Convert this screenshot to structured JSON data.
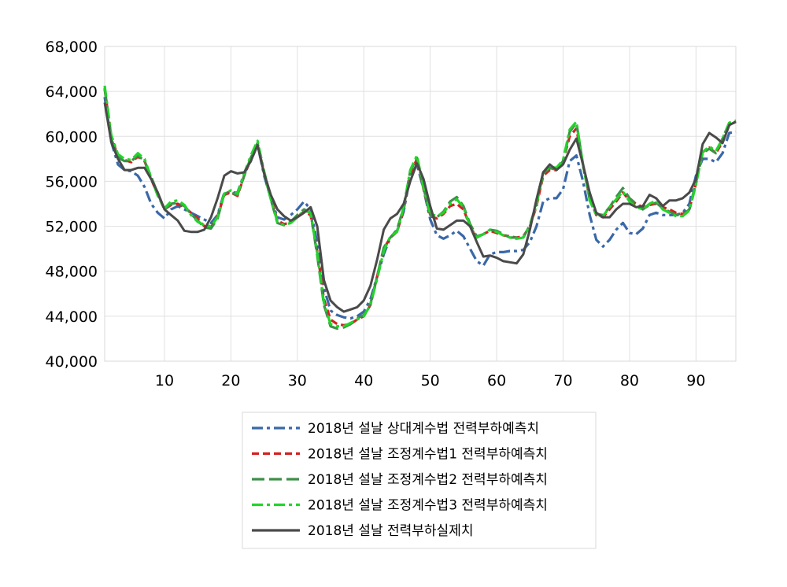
{
  "chart_data": {
    "type": "line",
    "title": "",
    "xlabel": "",
    "ylabel": "",
    "xlim": [
      1,
      96
    ],
    "ylim": [
      40000,
      68000
    ],
    "x_ticks": [
      10,
      20,
      30,
      40,
      50,
      60,
      70,
      80,
      90
    ],
    "x_tick_labels": [
      "10",
      "20",
      "30",
      "40",
      "50",
      "60",
      "70",
      "80",
      "90"
    ],
    "y_ticks": [
      40000,
      44000,
      48000,
      52000,
      56000,
      60000,
      64000,
      68000
    ],
    "y_tick_labels": [
      "40,000",
      "44,000",
      "48,000",
      "52,000",
      "56,000",
      "60,000",
      "64,000",
      "68,000"
    ],
    "grid": true,
    "legend_position": "bottom",
    "x": [
      1,
      2,
      3,
      4,
      5,
      6,
      7,
      8,
      9,
      10,
      11,
      12,
      13,
      14,
      15,
      16,
      17,
      18,
      19,
      20,
      21,
      22,
      23,
      24,
      25,
      26,
      27,
      28,
      29,
      30,
      31,
      32,
      33,
      34,
      35,
      36,
      37,
      38,
      39,
      40,
      41,
      42,
      43,
      44,
      45,
      46,
      47,
      48,
      49,
      50,
      51,
      52,
      53,
      54,
      55,
      56,
      57,
      58,
      59,
      60,
      61,
      62,
      63,
      64,
      65,
      66,
      67,
      68,
      69,
      70,
      71,
      72,
      73,
      74,
      75,
      76,
      77,
      78,
      79,
      80,
      81,
      82,
      83,
      84,
      85,
      86,
      87,
      88,
      89,
      90,
      91,
      92,
      93,
      94,
      95,
      96
    ],
    "series": [
      {
        "name": "2018년 설날 상대계수법 전력부하예측치",
        "color": "#3a68a8",
        "dash": "dashdot",
        "values": [
          63500,
          59500,
          57500,
          57000,
          56900,
          56500,
          55500,
          54000,
          53200,
          52700,
          53500,
          53800,
          53500,
          53200,
          52900,
          52600,
          52300,
          53000,
          55000,
          55000,
          55000,
          56700,
          57800,
          59300,
          56500,
          54500,
          52800,
          52600,
          53000,
          53500,
          54200,
          53500,
          50500,
          46500,
          44500,
          44100,
          43900,
          43800,
          44000,
          44400,
          45500,
          47500,
          49500,
          51000,
          51600,
          53300,
          56500,
          57500,
          55300,
          52600,
          51200,
          50900,
          51200,
          51600,
          51100,
          50000,
          48900,
          48500,
          49500,
          49700,
          49700,
          49800,
          49800,
          49900,
          50600,
          52000,
          54200,
          54500,
          54500,
          55300,
          57800,
          58300,
          56000,
          53000,
          50800,
          50200,
          50800,
          51700,
          52300,
          51400,
          51300,
          51800,
          53000,
          53200,
          53000,
          53000,
          53000,
          53200,
          54000,
          56500,
          58000,
          58000,
          57700,
          58500,
          60300,
          60400
        ]
      },
      {
        "name": "2018년 설날 조정계수법1 전력부하예측치",
        "color": "#d42020",
        "dash": "dash",
        "values": [
          64200,
          60000,
          58200,
          57900,
          57700,
          58200,
          57800,
          56200,
          54800,
          53500,
          53900,
          54000,
          53700,
          53200,
          52700,
          52000,
          51900,
          52900,
          54800,
          55000,
          54700,
          56500,
          58000,
          59300,
          56800,
          54600,
          52500,
          52200,
          52300,
          52800,
          53300,
          53000,
          49800,
          45500,
          43700,
          43300,
          43200,
          43300,
          43700,
          44000,
          45000,
          47500,
          50000,
          51000,
          51500,
          53500,
          56600,
          58000,
          55300,
          52900,
          52700,
          53100,
          53800,
          54000,
          53500,
          52000,
          51000,
          51300,
          51600,
          51400,
          51200,
          51100,
          51000,
          51100,
          52000,
          53800,
          56500,
          57000,
          57000,
          57800,
          60000,
          60700,
          57400,
          54500,
          53000,
          52800,
          53500,
          54200,
          55000,
          54300,
          54000,
          53700,
          53900,
          54000,
          53700,
          53500,
          53200,
          53100,
          53500,
          55800,
          58600,
          59000,
          58500,
          59500,
          61000,
          61300
        ]
      },
      {
        "name": "2018년 설날 조정계수법2 전력부하예측치",
        "color": "#3f8f4a",
        "dash": "longdash",
        "values": [
          64300,
          59800,
          58100,
          57800,
          57800,
          58300,
          57800,
          56400,
          54900,
          53500,
          54000,
          54100,
          53800,
          53100,
          52500,
          51900,
          51800,
          52700,
          54900,
          55000,
          54800,
          56500,
          58100,
          59400,
          56700,
          54400,
          52300,
          52100,
          52400,
          53000,
          53500,
          53200,
          49400,
          45000,
          43100,
          42900,
          43000,
          43300,
          43800,
          44100,
          45100,
          47500,
          50100,
          51000,
          51700,
          53700,
          56900,
          58100,
          55400,
          53000,
          52800,
          53300,
          54200,
          54600,
          53800,
          52200,
          51100,
          51300,
          51700,
          51600,
          51300,
          51000,
          51000,
          51000,
          52100,
          54000,
          56700,
          57200,
          57000,
          57800,
          60400,
          61200,
          57500,
          54400,
          53100,
          53000,
          53700,
          54600,
          55400,
          54500,
          54000,
          53500,
          53900,
          54100,
          53600,
          53300,
          53000,
          53000,
          53500,
          55900,
          58500,
          58900,
          58500,
          59800,
          61200,
          61400
        ]
      },
      {
        "name": "2018년 설날 조정계수법3 전력부하예측치",
        "color": "#22d42a",
        "dash": "dashdot",
        "values": [
          64500,
          60100,
          58400,
          58000,
          57900,
          58500,
          58000,
          56300,
          54700,
          53600,
          54200,
          54300,
          53900,
          53000,
          52400,
          52100,
          52000,
          52800,
          54900,
          55200,
          54900,
          56700,
          58300,
          59600,
          56900,
          54400,
          52400,
          52100,
          52300,
          52800,
          53400,
          53200,
          49600,
          45200,
          43300,
          43100,
          43100,
          43400,
          43700,
          44000,
          45000,
          47300,
          49800,
          51100,
          51500,
          53700,
          57000,
          58300,
          55400,
          53100,
          52900,
          53200,
          54000,
          54400,
          53700,
          52000,
          51000,
          51300,
          51700,
          51500,
          51200,
          51000,
          50900,
          51000,
          52000,
          53900,
          56800,
          57300,
          57200,
          57900,
          60600,
          61300,
          57500,
          54300,
          53000,
          52900,
          53700,
          54400,
          55100,
          54200,
          53700,
          53500,
          54000,
          54300,
          53500,
          53200,
          52900,
          52900,
          53400,
          55700,
          58600,
          59100,
          58700,
          59800,
          61200,
          61400
        ]
      },
      {
        "name": "2018년 설날 전력부하실제치",
        "color": "#4a4a4a",
        "dash": "solid",
        "values": [
          63000,
          59500,
          58000,
          57000,
          57000,
          57200,
          57200,
          56200,
          55000,
          53500,
          53000,
          52500,
          51600,
          51500,
          51500,
          51700,
          52800,
          54500,
          56500,
          56900,
          56700,
          56800,
          57800,
          59200,
          56700,
          54800,
          53500,
          52900,
          52500,
          52800,
          53200,
          53700,
          52000,
          47200,
          45400,
          44800,
          44400,
          44600,
          44800,
          45400,
          46700,
          49000,
          51700,
          52700,
          53100,
          54000,
          56000,
          57600,
          56200,
          53800,
          51800,
          51700,
          52100,
          52500,
          52500,
          52000,
          50600,
          49300,
          49400,
          49200,
          48900,
          48800,
          48700,
          49500,
          51700,
          54400,
          56800,
          57500,
          57000,
          57500,
          58800,
          59800,
          57500,
          55000,
          53200,
          52800,
          52800,
          53500,
          54000,
          54000,
          53700,
          53800,
          54800,
          54500,
          53800,
          54300,
          54300,
          54500,
          55000,
          56200,
          59300,
          60300,
          59900,
          59400,
          61000,
          61300
        ]
      }
    ]
  }
}
